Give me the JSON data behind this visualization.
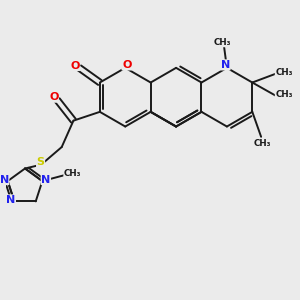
{
  "bg_color": "#ebebeb",
  "bond_color": "#1a1a1a",
  "bond_width": 1.4,
  "atom_colors": {
    "O": "#ee0000",
    "N": "#2222ee",
    "S": "#cccc00",
    "C": "#1a1a1a"
  },
  "font_size": 8.0,
  "small_font": 6.8,
  "figsize": [
    3.0,
    3.0
  ],
  "dpi": 100,
  "xlim": [
    0.0,
    10.0
  ],
  "ylim": [
    0.0,
    10.0
  ]
}
